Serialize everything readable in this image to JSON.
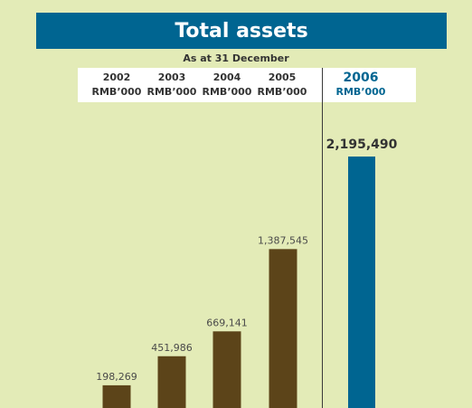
{
  "title": "Total assets",
  "subtitle": "As at 31 December",
  "colors": {
    "past": "#5c4419",
    "current": "#006591",
    "title_bg": "#006591",
    "background": "#e3ebb7"
  },
  "chart_data": {
    "type": "bar",
    "title": "Total assets",
    "subtitle": "As at 31 December",
    "unit": "RMB'000",
    "categories": [
      "2002",
      "2003",
      "2004",
      "2005",
      "2006"
    ],
    "values": [
      198269,
      451986,
      669141,
      1387545,
      2195490
    ],
    "data_labels": [
      "198,269",
      "451,986",
      "669,141",
      "1,387,545",
      "2,195,490"
    ],
    "column_units": [
      "RMB’000",
      "RMB’000",
      "RMB’000",
      "RMB’000",
      "RMB’000"
    ],
    "highlighted_category": "2006",
    "grid": false,
    "legend": "none"
  }
}
